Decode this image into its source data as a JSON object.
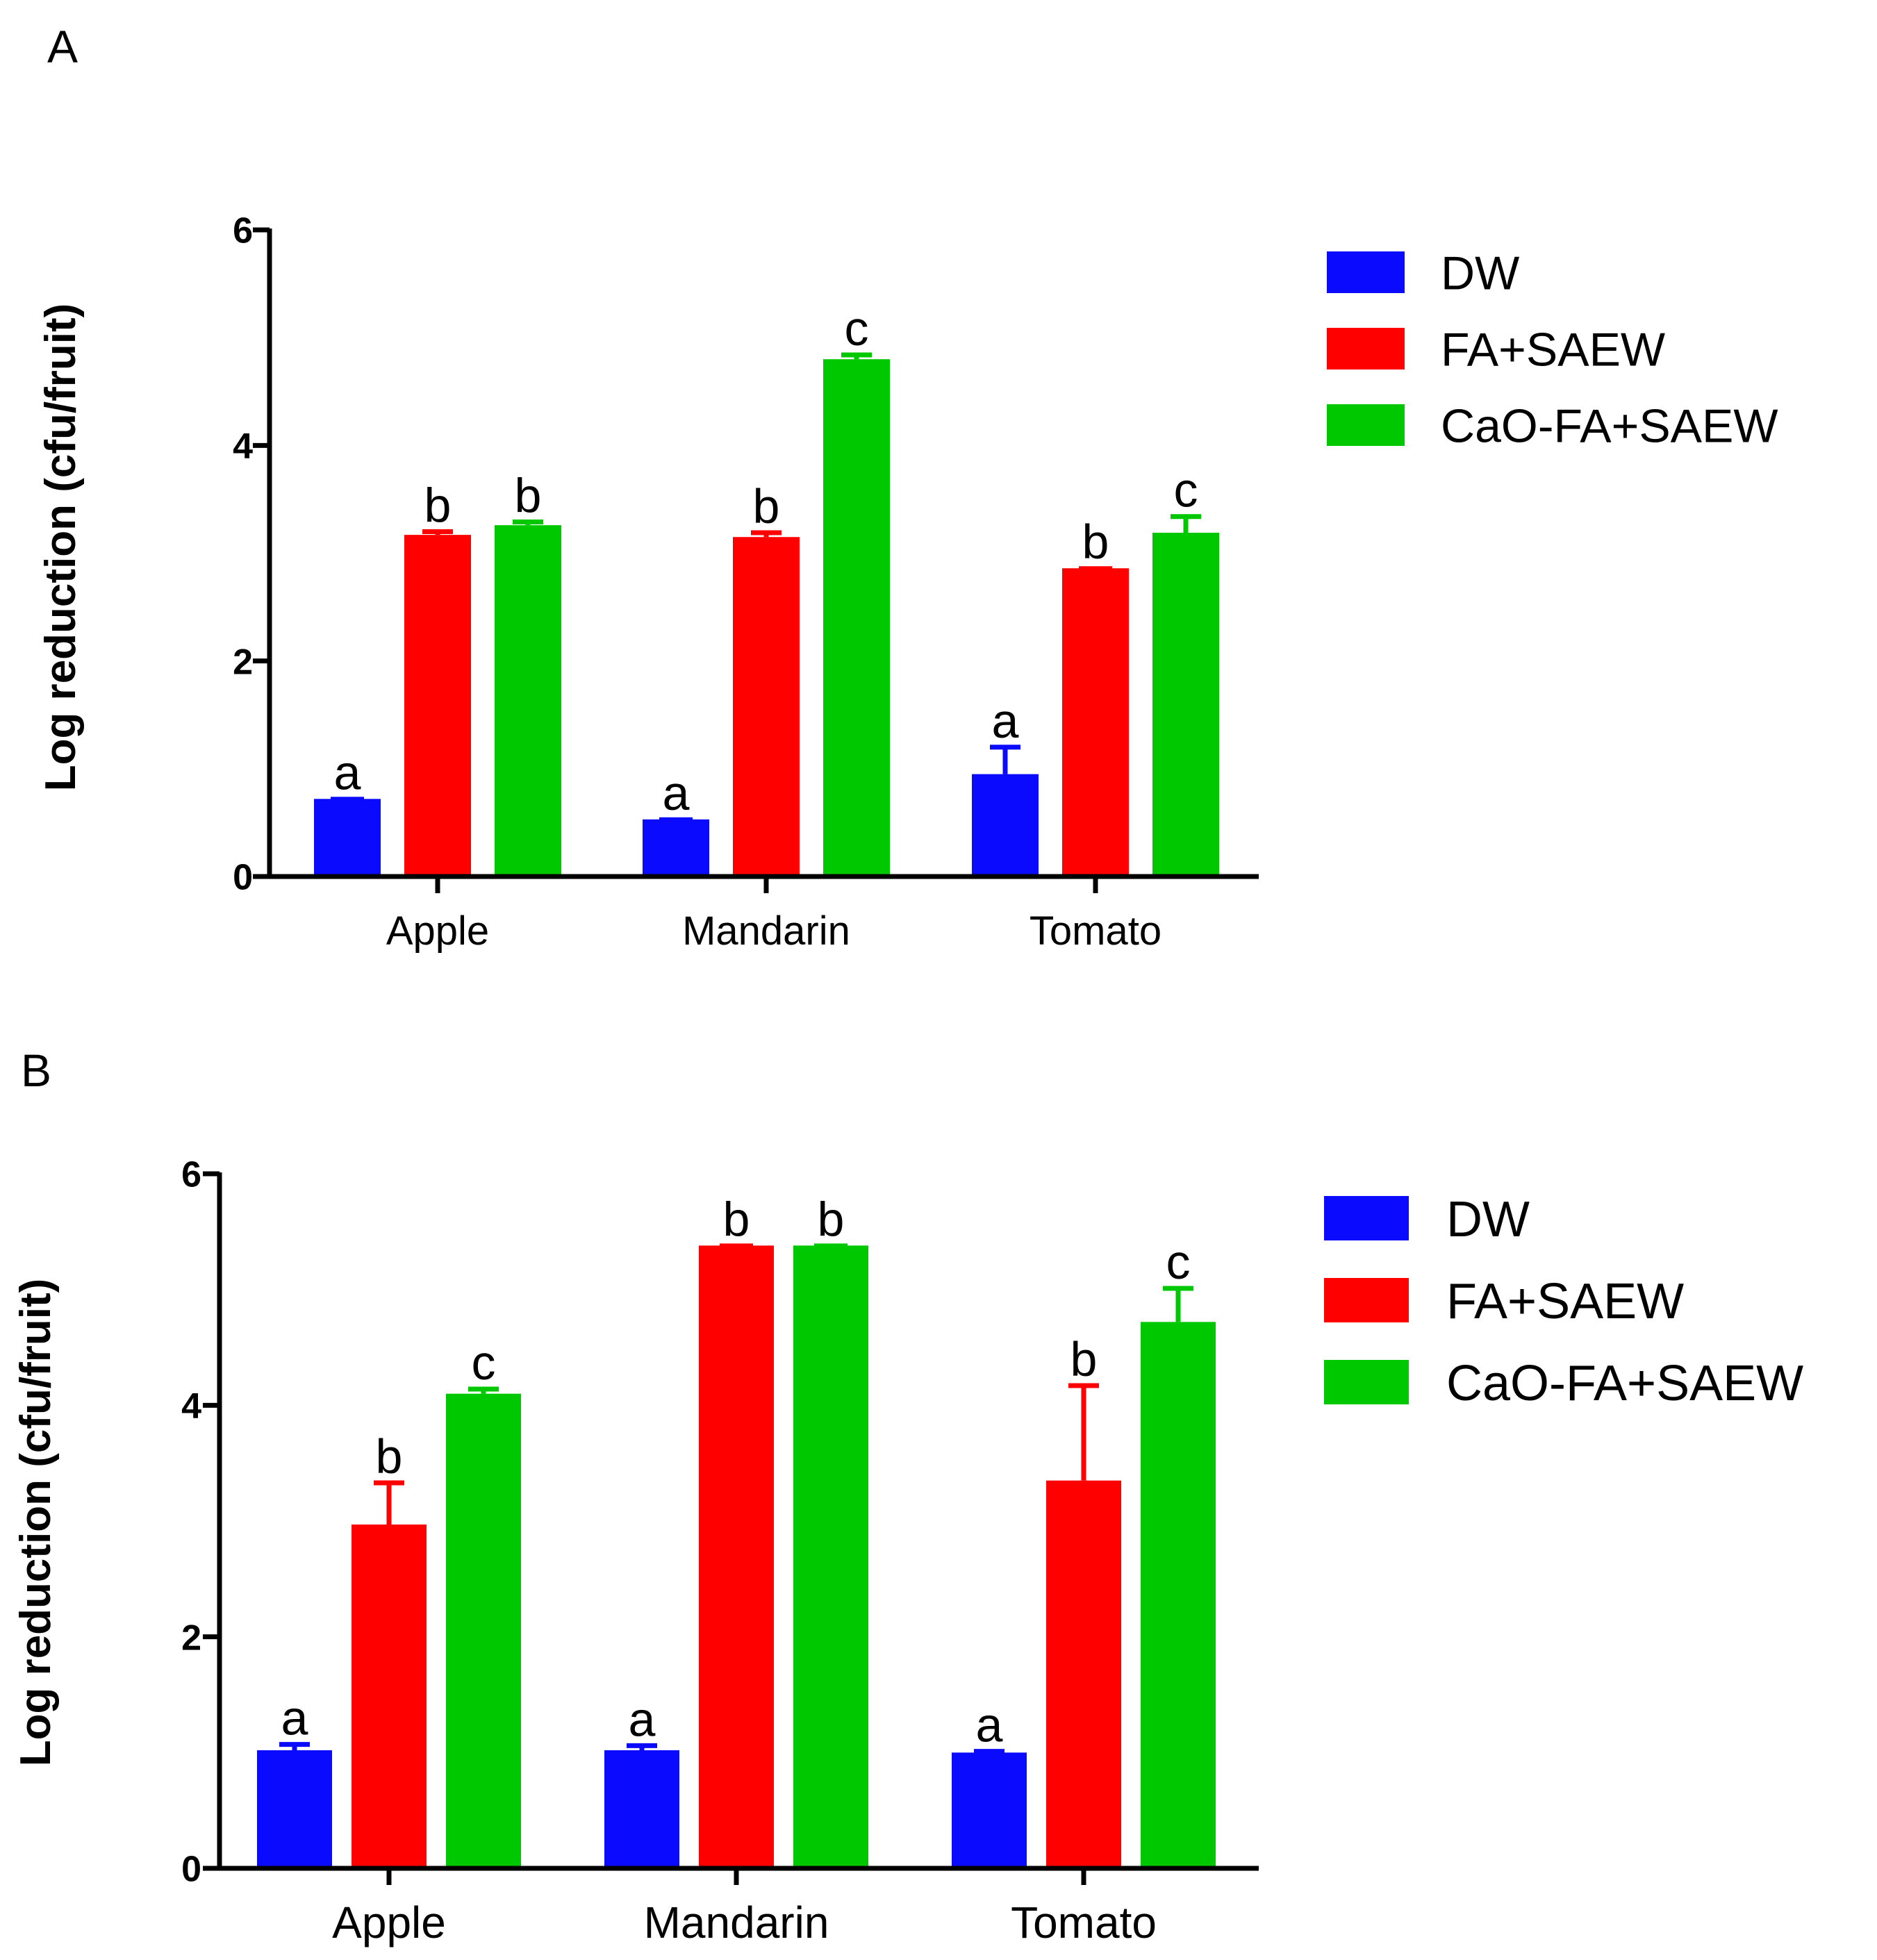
{
  "colors": {
    "DW": "#0a0aff",
    "FA+SAEW": "#ff0000",
    "CaO-FA+SAEW": "#00c800",
    "axis": "#000000"
  },
  "chart_data": [
    {
      "panel": "A",
      "type": "bar",
      "ylabel": "Log reduction (cfu/fruit)",
      "xlabel": "",
      "ylim": [
        0,
        6
      ],
      "yticks": [
        0,
        2,
        4,
        6
      ],
      "grid": false,
      "legend_position": "right",
      "categories": [
        "Apple",
        "Mandarin",
        "Tomato"
      ],
      "series": [
        {
          "name": "DW",
          "values": [
            0.72,
            0.53,
            0.95
          ],
          "errors": [
            0.0,
            0.0,
            0.25
          ],
          "labels": [
            "a",
            "a",
            "a"
          ]
        },
        {
          "name": "FA+SAEW",
          "values": [
            3.17,
            3.15,
            2.86
          ],
          "errors": [
            0.03,
            0.04,
            0.0
          ],
          "labels": [
            "b",
            "b",
            "b"
          ]
        },
        {
          "name": "CaO-FA+SAEW",
          "values": [
            3.26,
            4.8,
            3.19
          ],
          "errors": [
            0.03,
            0.04,
            0.15
          ],
          "labels": [
            "b",
            "c",
            "c"
          ]
        }
      ]
    },
    {
      "panel": "B",
      "type": "bar",
      "ylabel": "Log reduction (cfu/fruit)",
      "xlabel": "",
      "ylim": [
        0,
        6
      ],
      "yticks": [
        0,
        2,
        4,
        6
      ],
      "grid": false,
      "legend_position": "right",
      "categories": [
        "Apple",
        "Mandarin",
        "Tomato"
      ],
      "series": [
        {
          "name": "DW",
          "values": [
            1.02,
            1.02,
            1.0
          ],
          "errors": [
            0.05,
            0.04,
            0.01
          ],
          "labels": [
            "a",
            "a",
            "a"
          ]
        },
        {
          "name": "FA+SAEW",
          "values": [
            2.97,
            5.38,
            3.35
          ],
          "errors": [
            0.36,
            0.0,
            0.82
          ],
          "labels": [
            "b",
            "b",
            "b"
          ]
        },
        {
          "name": "CaO-FA+SAEW",
          "values": [
            4.1,
            5.38,
            4.72
          ],
          "errors": [
            0.04,
            0.0,
            0.29
          ],
          "labels": [
            "c",
            "b",
            "c"
          ]
        }
      ]
    }
  ]
}
